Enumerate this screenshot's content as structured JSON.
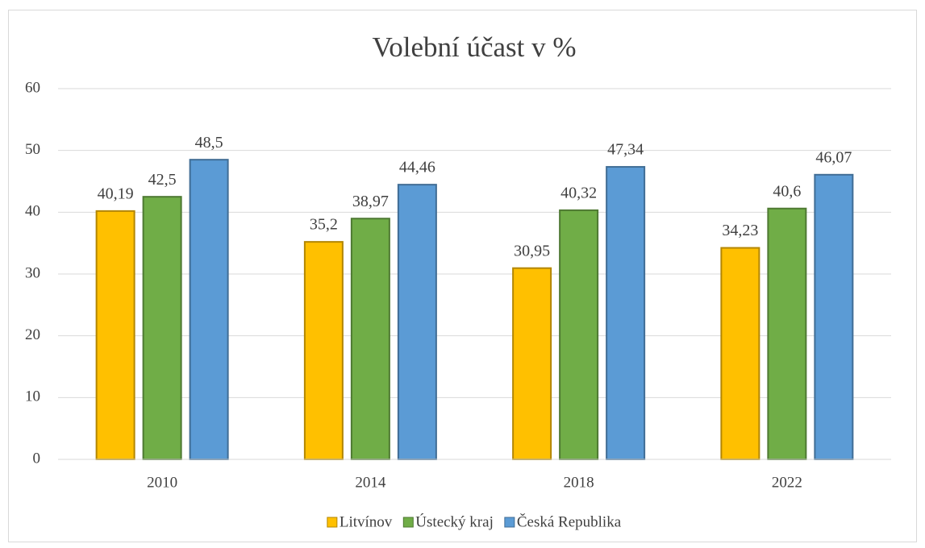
{
  "chart_data": {
    "type": "bar",
    "title": "Volební účast v %",
    "categories": [
      "2010",
      "2014",
      "2018",
      "2022"
    ],
    "series": [
      {
        "name": "Litvínov",
        "color": "#ffc000",
        "values": [
          40.19,
          35.2,
          30.95,
          34.23
        ],
        "value_labels": [
          "40,19",
          "35,2",
          "30,95",
          "34,23"
        ]
      },
      {
        "name": "Ústecký kraj",
        "color": "#70ad47",
        "values": [
          42.5,
          38.97,
          40.32,
          40.6
        ],
        "value_labels": [
          "42,5",
          "38,97",
          "40,32",
          "40,6"
        ]
      },
      {
        "name": "Česká Republika",
        "color": "#5b9bd5",
        "values": [
          48.5,
          44.46,
          47.34,
          46.07
        ],
        "value_labels": [
          "48,5",
          "44,46",
          "47,34",
          "46,07"
        ]
      }
    ],
    "ylim": [
      0,
      60
    ],
    "yticks": [
      0,
      10,
      20,
      30,
      40,
      50,
      60
    ],
    "grid": true,
    "legend": "bottom"
  }
}
